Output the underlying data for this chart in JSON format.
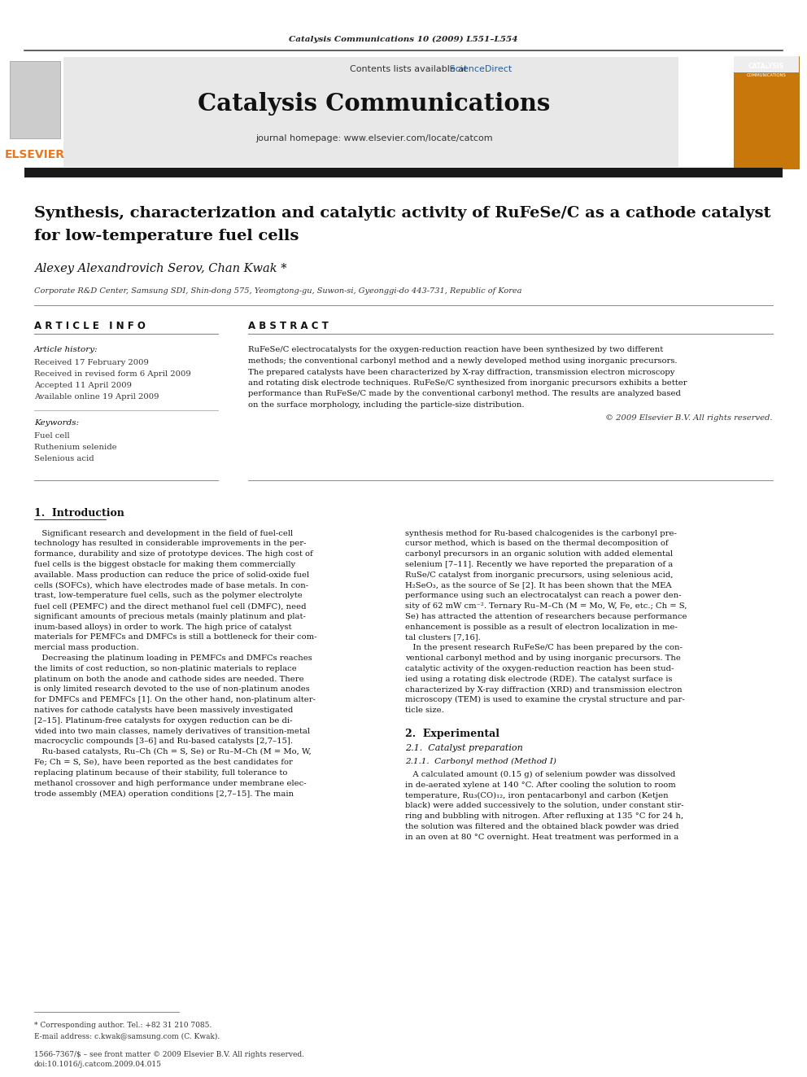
{
  "page_width": 9.92,
  "page_height": 13.23,
  "background_color": "#ffffff",
  "top_citation": "Catalysis Communications 10 (2009) L551–L554",
  "journal_name": "Catalysis Communications",
  "contents_line": "Contents lists available at ScienceDirect",
  "journal_homepage": "journal homepage: www.elsevier.com/locate/catcom",
  "sciencedirect_color": "#2060a0",
  "header_bg": "#e8e8e8",
  "dark_bar_color": "#1a1a1a",
  "elsevier_orange": "#e87722",
  "article_title_1": "Synthesis, characterization and catalytic activity of RuFeSe/C as a cathode catalyst",
  "article_title_2": "for low-temperature fuel cells",
  "authors": "Alexey Alexandrovich Serov, Chan Kwak *",
  "affiliation": "Corporate R&D Center, Samsung SDI, Shin-dong 575, Yeomgtong-gu, Suwon-si, Gyeonggi-do 443-731, Republic of Korea",
  "article_info_header": "A R T I C L E   I N F O",
  "abstract_header": "A B S T R A C T",
  "article_history_label": "Article history:",
  "received_1": "Received 17 February 2009",
  "received_2": "Received in revised form 6 April 2009",
  "accepted": "Accepted 11 April 2009",
  "available": "Available online 19 April 2009",
  "keywords_label": "Keywords:",
  "keyword_1": "Fuel cell",
  "keyword_2": "Ruthenium selenide",
  "keyword_3": "Selenious acid",
  "abstract_text": "RuFeSe/C electrocatalysts for the oxygen-reduction reaction have been synthesized by two different\nmethods; the conventional carbonyl method and a newly developed method using inorganic precursors.\nThe prepared catalysts have been characterized by X-ray diffraction, transmission electron microscopy\nand rotating disk electrode techniques. RuFeSe/C synthesized from inorganic precursors exhibits a better\nperformance than RuFeSe/C made by the conventional carbonyl method. The results are analyzed based\non the surface morphology, including the particle-size distribution.",
  "copyright_text": "© 2009 Elsevier B.V. All rights reserved.",
  "intro_section": "1.  Introduction",
  "intro_left_col": [
    "   Significant research and development in the field of fuel-cell",
    "technology has resulted in considerable improvements in the per-",
    "formance, durability and size of prototype devices. The high cost of",
    "fuel cells is the biggest obstacle for making them commercially",
    "available. Mass production can reduce the price of solid-oxide fuel",
    "cells (SOFCs), which have electrodes made of base metals. In con-",
    "trast, low-temperature fuel cells, such as the polymer electrolyte",
    "fuel cell (PEMFC) and the direct methanol fuel cell (DMFC), need",
    "significant amounts of precious metals (mainly platinum and plat-",
    "inum-based alloys) in order to work. The high price of catalyst",
    "materials for PEMFCs and DMFCs is still a bottleneck for their com-",
    "mercial mass production.",
    "   Decreasing the platinum loading in PEMFCs and DMFCs reaches",
    "the limits of cost reduction, so non-platinic materials to replace",
    "platinum on both the anode and cathode sides are needed. There",
    "is only limited research devoted to the use of non-platinum anodes",
    "for DMFCs and PEMFCs [1]. On the other hand, non-platinum alter-",
    "natives for cathode catalysts have been massively investigated",
    "[2–15]. Platinum-free catalysts for oxygen reduction can be di-",
    "vided into two main classes, namely derivatives of transition-metal",
    "macrocyclic compounds [3–6] and Ru-based catalysts [2,7–15].",
    "   Ru-based catalysts, Ru–Ch (Ch = S, Se) or Ru–M–Ch (M = Mo, W,",
    "Fe; Ch = S, Se), have been reported as the best candidates for",
    "replacing platinum because of their stability, full tolerance to",
    "methanol crossover and high performance under membrane elec-",
    "trode assembly (MEA) operation conditions [2,7–15]. The main"
  ],
  "intro_right_col": [
    "synthesis method for Ru-based chalcogenides is the carbonyl pre-",
    "cursor method, which is based on the thermal decomposition of",
    "carbonyl precursors in an organic solution with added elemental",
    "selenium [7–11]. Recently we have reported the preparation of a",
    "RuSe/C catalyst from inorganic precursors, using selenious acid,",
    "H₂SeO₃, as the source of Se [2]. It has been shown that the MEA",
    "performance using such an electrocatalyst can reach a power den-",
    "sity of 62 mW cm⁻². Ternary Ru–M–Ch (M = Mo, W, Fe, etc.; Ch = S,",
    "Se) has attracted the attention of researchers because performance",
    "enhancement is possible as a result of electron localization in me-",
    "tal clusters [7,16].",
    "   In the present research RuFeSe/C has been prepared by the con-",
    "ventional carbonyl method and by using inorganic precursors. The",
    "catalytic activity of the oxygen-reduction reaction has been stud-",
    "ied using a rotating disk electrode (RDE). The catalyst surface is",
    "characterized by X-ray diffraction (XRD) and transmission electron",
    "microscopy (TEM) is used to examine the crystal structure and par-",
    "ticle size."
  ],
  "experimental_section": "2.  Experimental",
  "catalyst_prep_section": "2.1.  Catalyst preparation",
  "carbonyl_section": "2.1.1.  Carbonyl method (Method I)",
  "carbonyl_text": [
    "   A calculated amount (0.15 g) of selenium powder was dissolved",
    "in de-aerated xylene at 140 °C. After cooling the solution to room",
    "temperature, Ru₃(CO)₁₂, iron pentacarbonyl and carbon (Ketjen",
    "black) were added successively to the solution, under constant stir-",
    "ring and bubbling with nitrogen. After refluxing at 135 °C for 24 h,",
    "the solution was filtered and the obtained black powder was dried",
    "in an oven at 80 °C overnight. Heat treatment was performed in a"
  ],
  "footnote_star": "* Corresponding author. Tel.: +82 31 210 7085.",
  "footnote_email": "E-mail address: c.kwak@samsung.com (C. Kwak).",
  "footer_issn": "1566-7367/$ – see front matter © 2009 Elsevier B.V. All rights reserved.",
  "footer_doi": "doi:10.1016/j.catcom.2009.04.015"
}
